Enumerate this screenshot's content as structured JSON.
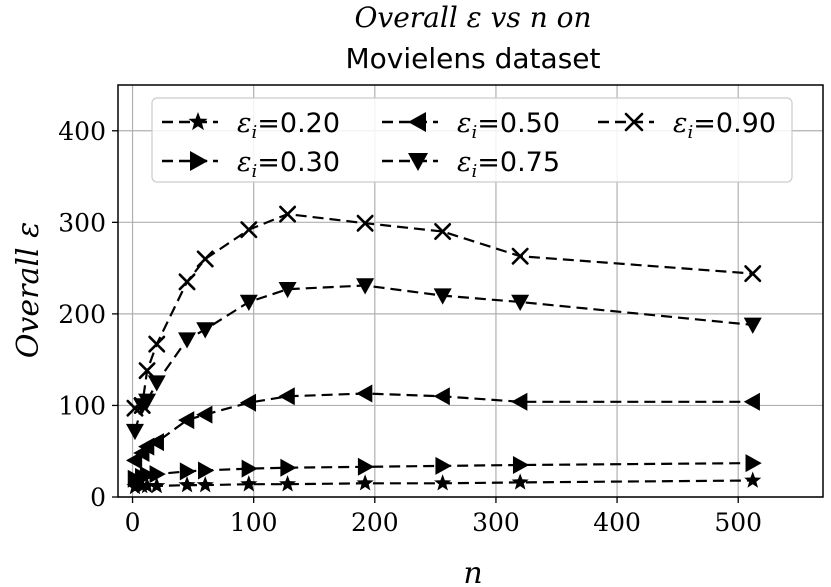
{
  "chart_data": {
    "type": "line",
    "title": [
      "Overall ε vs n on",
      "Movielens dataset"
    ],
    "xlabel": "n",
    "ylabel": "Overall ε",
    "xlim": [
      -12,
      570
    ],
    "ylim": [
      0,
      450
    ],
    "xticks": [
      0,
      100,
      200,
      300,
      400,
      500
    ],
    "yticks": [
      0,
      100,
      200,
      300,
      400
    ],
    "grid": true,
    "legend_position": "top",
    "x": [
      2,
      8,
      12,
      20,
      45,
      60,
      96,
      128,
      192,
      256,
      320,
      512
    ],
    "series": [
      {
        "name": "ε_i=0.20",
        "label_prefix": "ε",
        "label_sub": "i",
        "label_value": "=0.20",
        "marker": "star",
        "values": [
          11,
          12,
          12,
          12,
          13,
          13,
          14,
          14,
          15,
          15,
          16,
          18
        ]
      },
      {
        "name": "ε_i=0.30",
        "label_prefix": "ε",
        "label_sub": "i",
        "label_value": "=0.30",
        "marker": "triangle-right",
        "values": [
          20,
          22,
          24,
          25,
          28,
          29,
          31,
          32,
          33,
          34,
          35,
          37
        ]
      },
      {
        "name": "ε_i=0.50",
        "label_prefix": "ε",
        "label_sub": "i",
        "label_value": "=0.50",
        "marker": "triangle-left",
        "values": [
          40,
          48,
          55,
          60,
          84,
          90,
          103,
          110,
          113,
          110,
          104,
          104
        ]
      },
      {
        "name": "ε_i=0.75",
        "label_prefix": "ε",
        "label_sub": "i",
        "label_value": "=0.75",
        "marker": "triangle-down",
        "values": [
          72,
          100,
          105,
          125,
          172,
          183,
          213,
          227,
          231,
          220,
          213,
          188
        ]
      },
      {
        "name": "ε_i=0.90",
        "label_prefix": "ε",
        "label_sub": "i",
        "label_value": "=0.90",
        "marker": "x",
        "values": [
          97,
          100,
          138,
          167,
          235,
          260,
          292,
          309,
          299,
          290,
          263,
          244
        ]
      }
    ]
  }
}
